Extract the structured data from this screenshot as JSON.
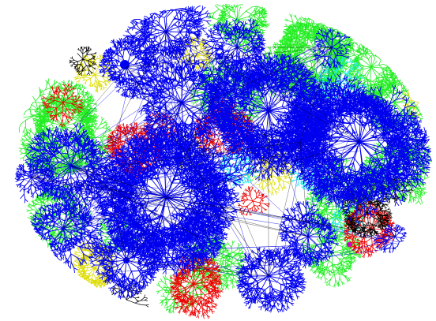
{
  "figure": {
    "description_text": "",
    "palette": {
      "background": "#ffffff",
      "blue": "#0000ee",
      "green": "#22ee22",
      "red": "#ee0000",
      "black": "#000000",
      "cyan": "#22eeee",
      "yellow": "#dddd00",
      "magenta": "#cc00cc",
      "gray": "#999999"
    },
    "groups": [
      {
        "name": "blue-backbone",
        "color": "#0000ee"
      },
      {
        "name": "green-regions",
        "color": "#22ee22"
      },
      {
        "name": "red-clusters",
        "color": "#ee0000"
      },
      {
        "name": "black-clusters",
        "color": "#000000"
      },
      {
        "name": "cyan-clusters",
        "color": "#22eeee"
      },
      {
        "name": "yellow-clusters",
        "color": "#dddd00"
      }
    ]
  }
}
